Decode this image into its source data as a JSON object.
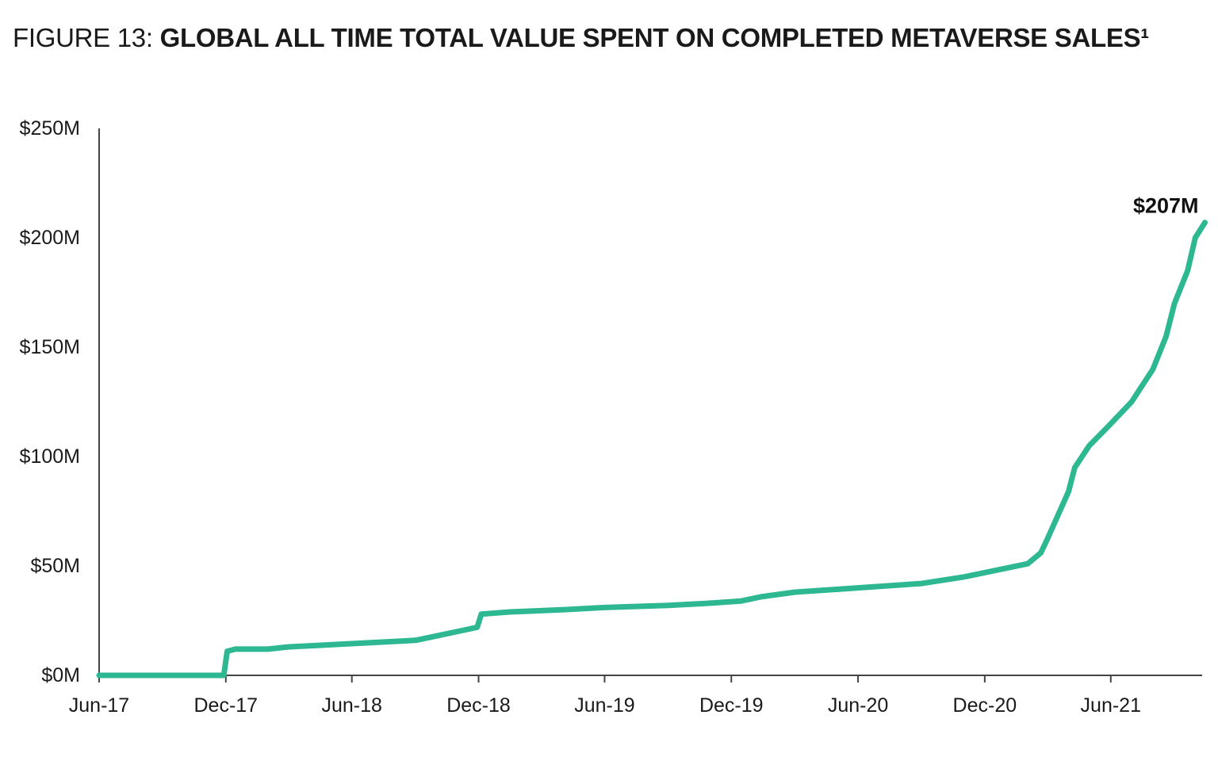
{
  "header": {
    "prefix": "FIGURE 13: ",
    "title": "GLOBAL ALL TIME TOTAL VALUE SPENT ON COMPLETED METAVERSE SALES¹"
  },
  "chart_data": {
    "type": "line",
    "title": "GLOBAL ALL TIME TOTAL VALUE SPENT ON COMPLETED METAVERSE SALES¹",
    "xlabel": "",
    "ylabel": "",
    "x_tick_labels": [
      "Jun-17",
      "Dec-17",
      "Jun-18",
      "Dec-18",
      "Jun-19",
      "Dec-19",
      "Jun-20",
      "Dec-20",
      "Jun-21"
    ],
    "x_tick_dates": [
      "2017-06",
      "2017-12",
      "2018-06",
      "2018-12",
      "2019-06",
      "2019-12",
      "2020-06",
      "2020-12",
      "2021-06"
    ],
    "y_tick_labels": [
      "$0M",
      "$50M",
      "$100M",
      "$150M",
      "$200M",
      "$250M"
    ],
    "y_tick_values": [
      0,
      50,
      100,
      150,
      200,
      250
    ],
    "ylim": [
      0,
      250
    ],
    "xlim": [
      "2017-06",
      "2021-10"
    ],
    "grid": false,
    "color": "#2db892",
    "series": [
      {
        "points": [
          [
            "2017-06-01",
            0
          ],
          [
            "2017-11-28",
            0
          ],
          [
            "2017-12-03",
            11
          ],
          [
            "2017-12-15",
            12
          ],
          [
            "2018-01-31",
            12
          ],
          [
            "2018-03-01",
            13
          ],
          [
            "2018-05-01",
            14
          ],
          [
            "2018-07-01",
            15
          ],
          [
            "2018-09-01",
            16
          ],
          [
            "2018-10-01",
            18
          ],
          [
            "2018-11-15",
            21
          ],
          [
            "2018-11-29",
            22
          ],
          [
            "2018-12-05",
            28
          ],
          [
            "2019-01-15",
            29
          ],
          [
            "2019-04-01",
            30
          ],
          [
            "2019-06-01",
            31
          ],
          [
            "2019-09-01",
            32
          ],
          [
            "2019-11-01",
            33
          ],
          [
            "2019-12-15",
            34
          ],
          [
            "2020-01-15",
            36
          ],
          [
            "2020-03-01",
            38
          ],
          [
            "2020-06-01",
            40
          ],
          [
            "2020-09-01",
            42
          ],
          [
            "2020-11-01",
            45
          ],
          [
            "2021-01-01",
            49
          ],
          [
            "2021-02-01",
            51
          ],
          [
            "2021-02-20",
            56
          ],
          [
            "2021-03-01",
            62
          ],
          [
            "2021-03-15",
            72
          ],
          [
            "2021-04-01",
            84
          ],
          [
            "2021-04-10",
            95
          ],
          [
            "2021-05-01",
            105
          ],
          [
            "2021-06-01",
            115
          ],
          [
            "2021-07-01",
            125
          ],
          [
            "2021-08-01",
            140
          ],
          [
            "2021-08-20",
            155
          ],
          [
            "2021-09-01",
            170
          ],
          [
            "2021-09-20",
            185
          ],
          [
            "2021-10-01",
            200
          ],
          [
            "2021-10-15",
            207
          ]
        ]
      }
    ],
    "annotations": [
      {
        "text": "$207M",
        "x": "2021-10-15",
        "y": 207
      }
    ]
  }
}
